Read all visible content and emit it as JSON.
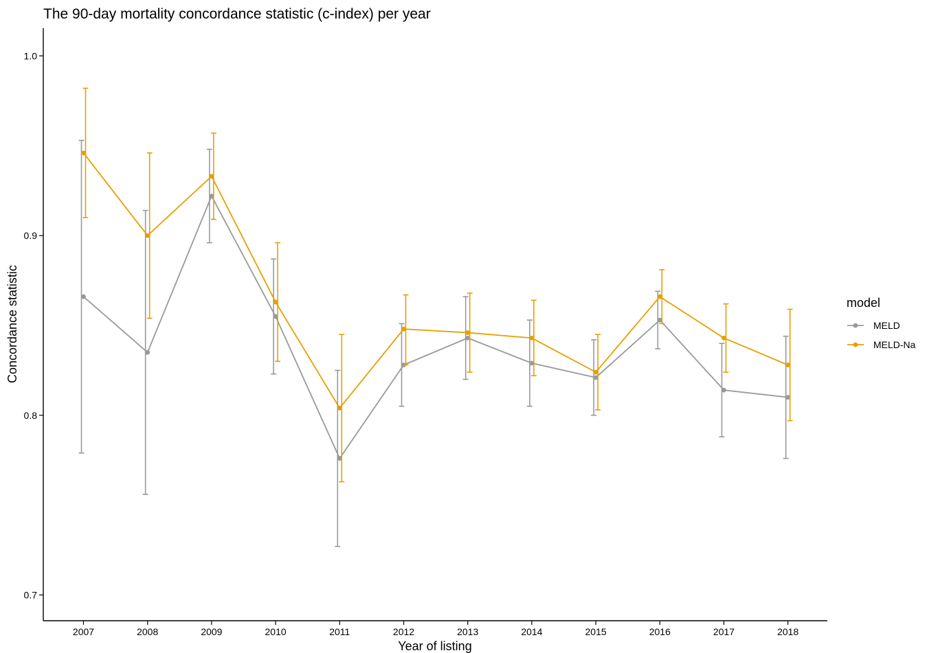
{
  "chart_data": {
    "type": "line",
    "title": "The 90-day mortality concordance statistic (c-index) per year",
    "xlabel": "Year of listing",
    "ylabel": "Concordance statistic",
    "x": [
      "2007",
      "2008",
      "2009",
      "2010",
      "2011",
      "2012",
      "2013",
      "2014",
      "2015",
      "2016",
      "2017",
      "2018"
    ],
    "ylim": [
      0.685,
      1.015
    ],
    "yticks": [
      "0.7",
      "0.8",
      "0.9",
      "1.0"
    ],
    "grid": false,
    "legend": {
      "title": "model",
      "position": "right"
    },
    "series": [
      {
        "name": "MELD",
        "color": "#999999",
        "values": [
          0.866,
          0.835,
          0.922,
          0.855,
          0.776,
          0.828,
          0.843,
          0.829,
          0.821,
          0.853,
          0.814,
          0.81
        ],
        "lower": [
          0.779,
          0.756,
          0.896,
          0.823,
          0.727,
          0.805,
          0.82,
          0.805,
          0.8,
          0.837,
          0.788,
          0.776
        ],
        "upper": [
          0.953,
          0.914,
          0.948,
          0.887,
          0.825,
          0.851,
          0.866,
          0.853,
          0.842,
          0.869,
          0.84,
          0.844
        ]
      },
      {
        "name": "MELD-Na",
        "color": "#E69F00",
        "values": [
          0.946,
          0.9,
          0.933,
          0.863,
          0.804,
          0.848,
          0.846,
          0.843,
          0.824,
          0.866,
          0.843,
          0.828
        ],
        "lower": [
          0.91,
          0.854,
          0.909,
          0.83,
          0.763,
          0.828,
          0.824,
          0.822,
          0.803,
          0.851,
          0.824,
          0.797
        ],
        "upper": [
          0.982,
          0.946,
          0.957,
          0.896,
          0.845,
          0.867,
          0.868,
          0.864,
          0.845,
          0.881,
          0.862,
          0.859
        ]
      }
    ]
  }
}
